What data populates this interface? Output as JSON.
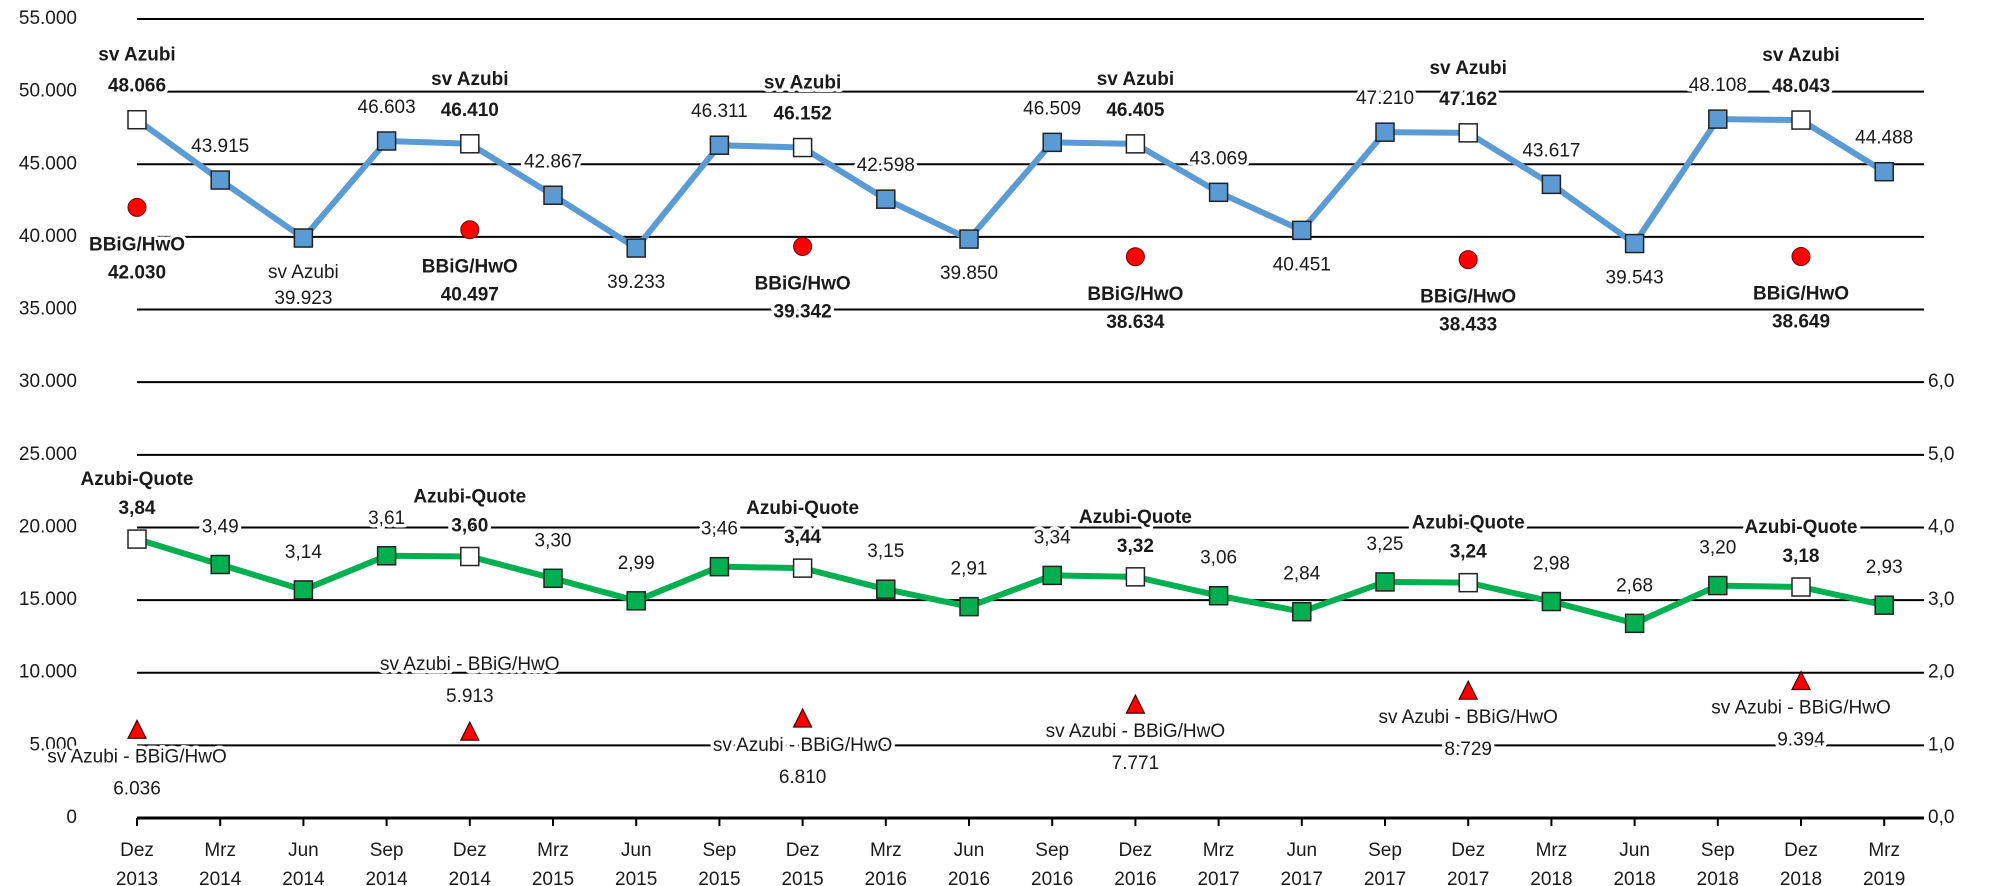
{
  "chart_data": {
    "type": "line",
    "categories": [
      "Dez 2013",
      "Mrz 2014",
      "Jun 2014",
      "Sep 2014",
      "Dez 2014",
      "Mrz 2015",
      "Jun 2015",
      "Sep 2015",
      "Dez 2015",
      "Mrz 2016",
      "Jun 2016",
      "Sep 2016",
      "Dez 2016",
      "Mrz 2017",
      "Jun 2017",
      "Sep 2017",
      "Dez 2017",
      "Mrz 2018",
      "Jun 2018",
      "Sep 2018",
      "Dez 2018",
      "Mrz 2019"
    ],
    "ylim": [
      0,
      55000
    ],
    "yticks": [
      0,
      {
        "value": 5000,
        "label": "5.000"
      },
      {
        "value": 10000,
        "label": "10.000"
      },
      {
        "value": 15000,
        "label": "15.000"
      },
      {
        "value": 20000,
        "label": "20.000"
      },
      {
        "value": 25000,
        "label": "25.000"
      },
      {
        "value": 30000,
        "label": "30.000"
      },
      {
        "value": 35000,
        "label": "35.000"
      },
      {
        "value": 40000,
        "label": "40.000"
      },
      {
        "value": 45000,
        "label": "45.000"
      },
      {
        "value": 50000,
        "label": "50.000"
      },
      {
        "value": 55000,
        "label": "55.000"
      }
    ],
    "y2lim": [
      0,
      11
    ],
    "y2ticks": [
      {
        "value": 0,
        "label": "0,0"
      },
      {
        "value": 1,
        "label": "1,0"
      },
      {
        "value": 2,
        "label": "2,0"
      },
      {
        "value": 3,
        "label": "3,0"
      },
      {
        "value": 4,
        "label": "4,0"
      },
      {
        "value": 5,
        "label": "5,0"
      },
      {
        "value": 6,
        "label": "6,0"
      }
    ],
    "grid": true,
    "series": [
      {
        "name": "sv Azubi",
        "color": "#5b9bd5",
        "line": true,
        "marker": "square",
        "values": [
          48066,
          43915,
          39923,
          46603,
          46410,
          42867,
          39233,
          46311,
          46152,
          42598,
          39850,
          46509,
          46405,
          43069,
          40451,
          47210,
          47162,
          43617,
          39543,
          48108,
          48043,
          44488
        ],
        "value_labels": [
          "48.066",
          "43.915",
          "39.923",
          "46.603",
          "46.410",
          "42.867",
          "39.233",
          "46.311",
          "46.152",
          "42.598",
          "39.850",
          "46.509",
          "46.405",
          "43.069",
          "40.451",
          "47.210",
          "47.162",
          "43.617",
          "39.543",
          "48.108",
          "48.043",
          "44.488"
        ]
      },
      {
        "name": "BBiG/HwO",
        "color": "#ff0000",
        "line": false,
        "marker": "circle",
        "values": [
          42030,
          null,
          null,
          null,
          40497,
          null,
          null,
          null,
          39342,
          null,
          null,
          null,
          38634,
          null,
          null,
          null,
          38433,
          null,
          null,
          null,
          38649,
          null
        ],
        "value_labels": [
          "42.030",
          null,
          null,
          null,
          "40.497",
          null,
          null,
          null,
          "39.342",
          null,
          null,
          null,
          "38.634",
          null,
          null,
          null,
          "38.433",
          null,
          null,
          null,
          "38.649",
          null
        ]
      },
      {
        "name": "Azubi-Quote",
        "color": "#00b050",
        "line": true,
        "marker": "square",
        "axis": "y2",
        "values": [
          3.84,
          3.49,
          3.14,
          3.61,
          3.6,
          3.3,
          2.99,
          3.46,
          3.44,
          3.15,
          2.91,
          3.34,
          3.32,
          3.06,
          2.84,
          3.25,
          3.24,
          2.98,
          2.68,
          3.2,
          3.18,
          2.93
        ],
        "value_labels": [
          "3,84",
          "3,49",
          "3,14",
          "3,61",
          "3,60",
          "3,30",
          "2,99",
          "3,46",
          "3,44",
          "3,15",
          "2,91",
          "3,34",
          "3,32",
          "3,06",
          "2,84",
          "3,25",
          "3,24",
          "2,98",
          "2,68",
          "3,20",
          "3,18",
          "2,93"
        ]
      },
      {
        "name": "sv Azubi - BBiG/HwO",
        "color": "#ff0000",
        "line": false,
        "marker": "triangle",
        "values": [
          6036,
          null,
          null,
          null,
          5913,
          null,
          null,
          null,
          6810,
          null,
          null,
          null,
          7771,
          null,
          null,
          null,
          8729,
          null,
          null,
          null,
          9394,
          null
        ],
        "value_labels": [
          "6.036",
          null,
          null,
          null,
          "5.913",
          null,
          null,
          null,
          "6.810",
          null,
          null,
          null,
          "7.771",
          null,
          null,
          null,
          "8.729",
          null,
          null,
          null,
          "9.394",
          null
        ]
      }
    ]
  }
}
